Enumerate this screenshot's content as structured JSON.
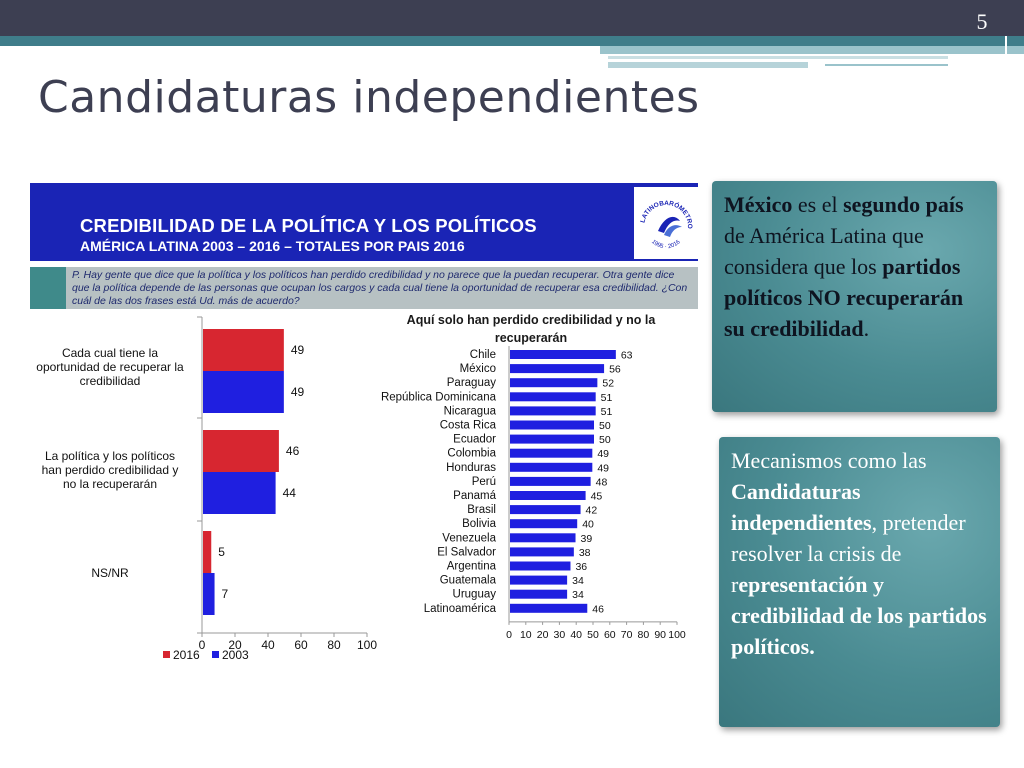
{
  "slide": {
    "number": "5",
    "title": "Candidaturas independientes"
  },
  "figure": {
    "title": "CREDIBILIDAD DE LA POLÍTICA Y LOS POLÍTICOS",
    "subtitle": "AMÉRICA LATINA 2003 – 2016 – TOTALES POR PAIS 2016",
    "logo_text": "LATINOBARÓMETRO · 1995 - 2016",
    "question": "P. Hay gente que dice que la política y los políticos han perdido credibilidad y no parece que la puedan recuperar. Otra gente dice que la política depende de las personas que ocupan los cargos y cada cual tiene la oportunidad de recuperar esa credibilidad. ¿Con cuál de las dos frases está Ud. más de acuerdo?"
  },
  "colors": {
    "header_blue": "#1a24b5",
    "series_2016": "#d72630",
    "series_2003": "#1f1fe0",
    "card_teal": "#4a8b92"
  },
  "chart_data": [
    {
      "type": "bar",
      "orientation": "horizontal",
      "categories": [
        "Cada cual tiene la oportunidad de recuperar la credibilidad",
        "La política y los políticos han perdido credibilidad y no la recuperarán",
        "NS/NR"
      ],
      "series": [
        {
          "name": "2016",
          "values": [
            49,
            46,
            5
          ]
        },
        {
          "name": "2003",
          "values": [
            49,
            44,
            7
          ]
        }
      ],
      "xlim": [
        0,
        100
      ],
      "xticks": [
        "0",
        "20",
        "40",
        "60",
        "80",
        "100"
      ],
      "legend_position": "bottom-left"
    },
    {
      "type": "bar",
      "orientation": "horizontal",
      "title": "Aquí solo han perdido credibilidad y no la recuperarán",
      "categories": [
        "Chile",
        "México",
        "Paraguay",
        "República Dominicana",
        "Nicaragua",
        "Costa Rica",
        "Ecuador",
        "Colombia",
        "Honduras",
        "Perú",
        "Panamá",
        "Brasil",
        "Bolivia",
        "Venezuela",
        "El Salvador",
        "Argentina",
        "Guatemala",
        "Uruguay",
        "Latinoamérica"
      ],
      "values": [
        63,
        56,
        52,
        51,
        51,
        50,
        50,
        49,
        49,
        48,
        45,
        42,
        40,
        39,
        38,
        36,
        34,
        34,
        46
      ],
      "xlim": [
        0,
        100
      ],
      "xticks": [
        "0",
        "10",
        "20",
        "30",
        "40",
        "50",
        "60",
        "70",
        "80",
        "90",
        "100"
      ]
    }
  ],
  "cards": {
    "card1": {
      "p1": "México",
      "p2": " es el ",
      "p3": "segundo país",
      "p4": " de América Latina que considera que los ",
      "p5": "partidos políticos NO recuperarán su credibilidad",
      "p6": "."
    },
    "card2": {
      "p1": "Mecanismos como las ",
      "p2": "Candidaturas independientes",
      "p3": ", pretender resolver la crisis de r",
      "p4": "epresentación y credibilidad de los partidos políticos."
    }
  }
}
